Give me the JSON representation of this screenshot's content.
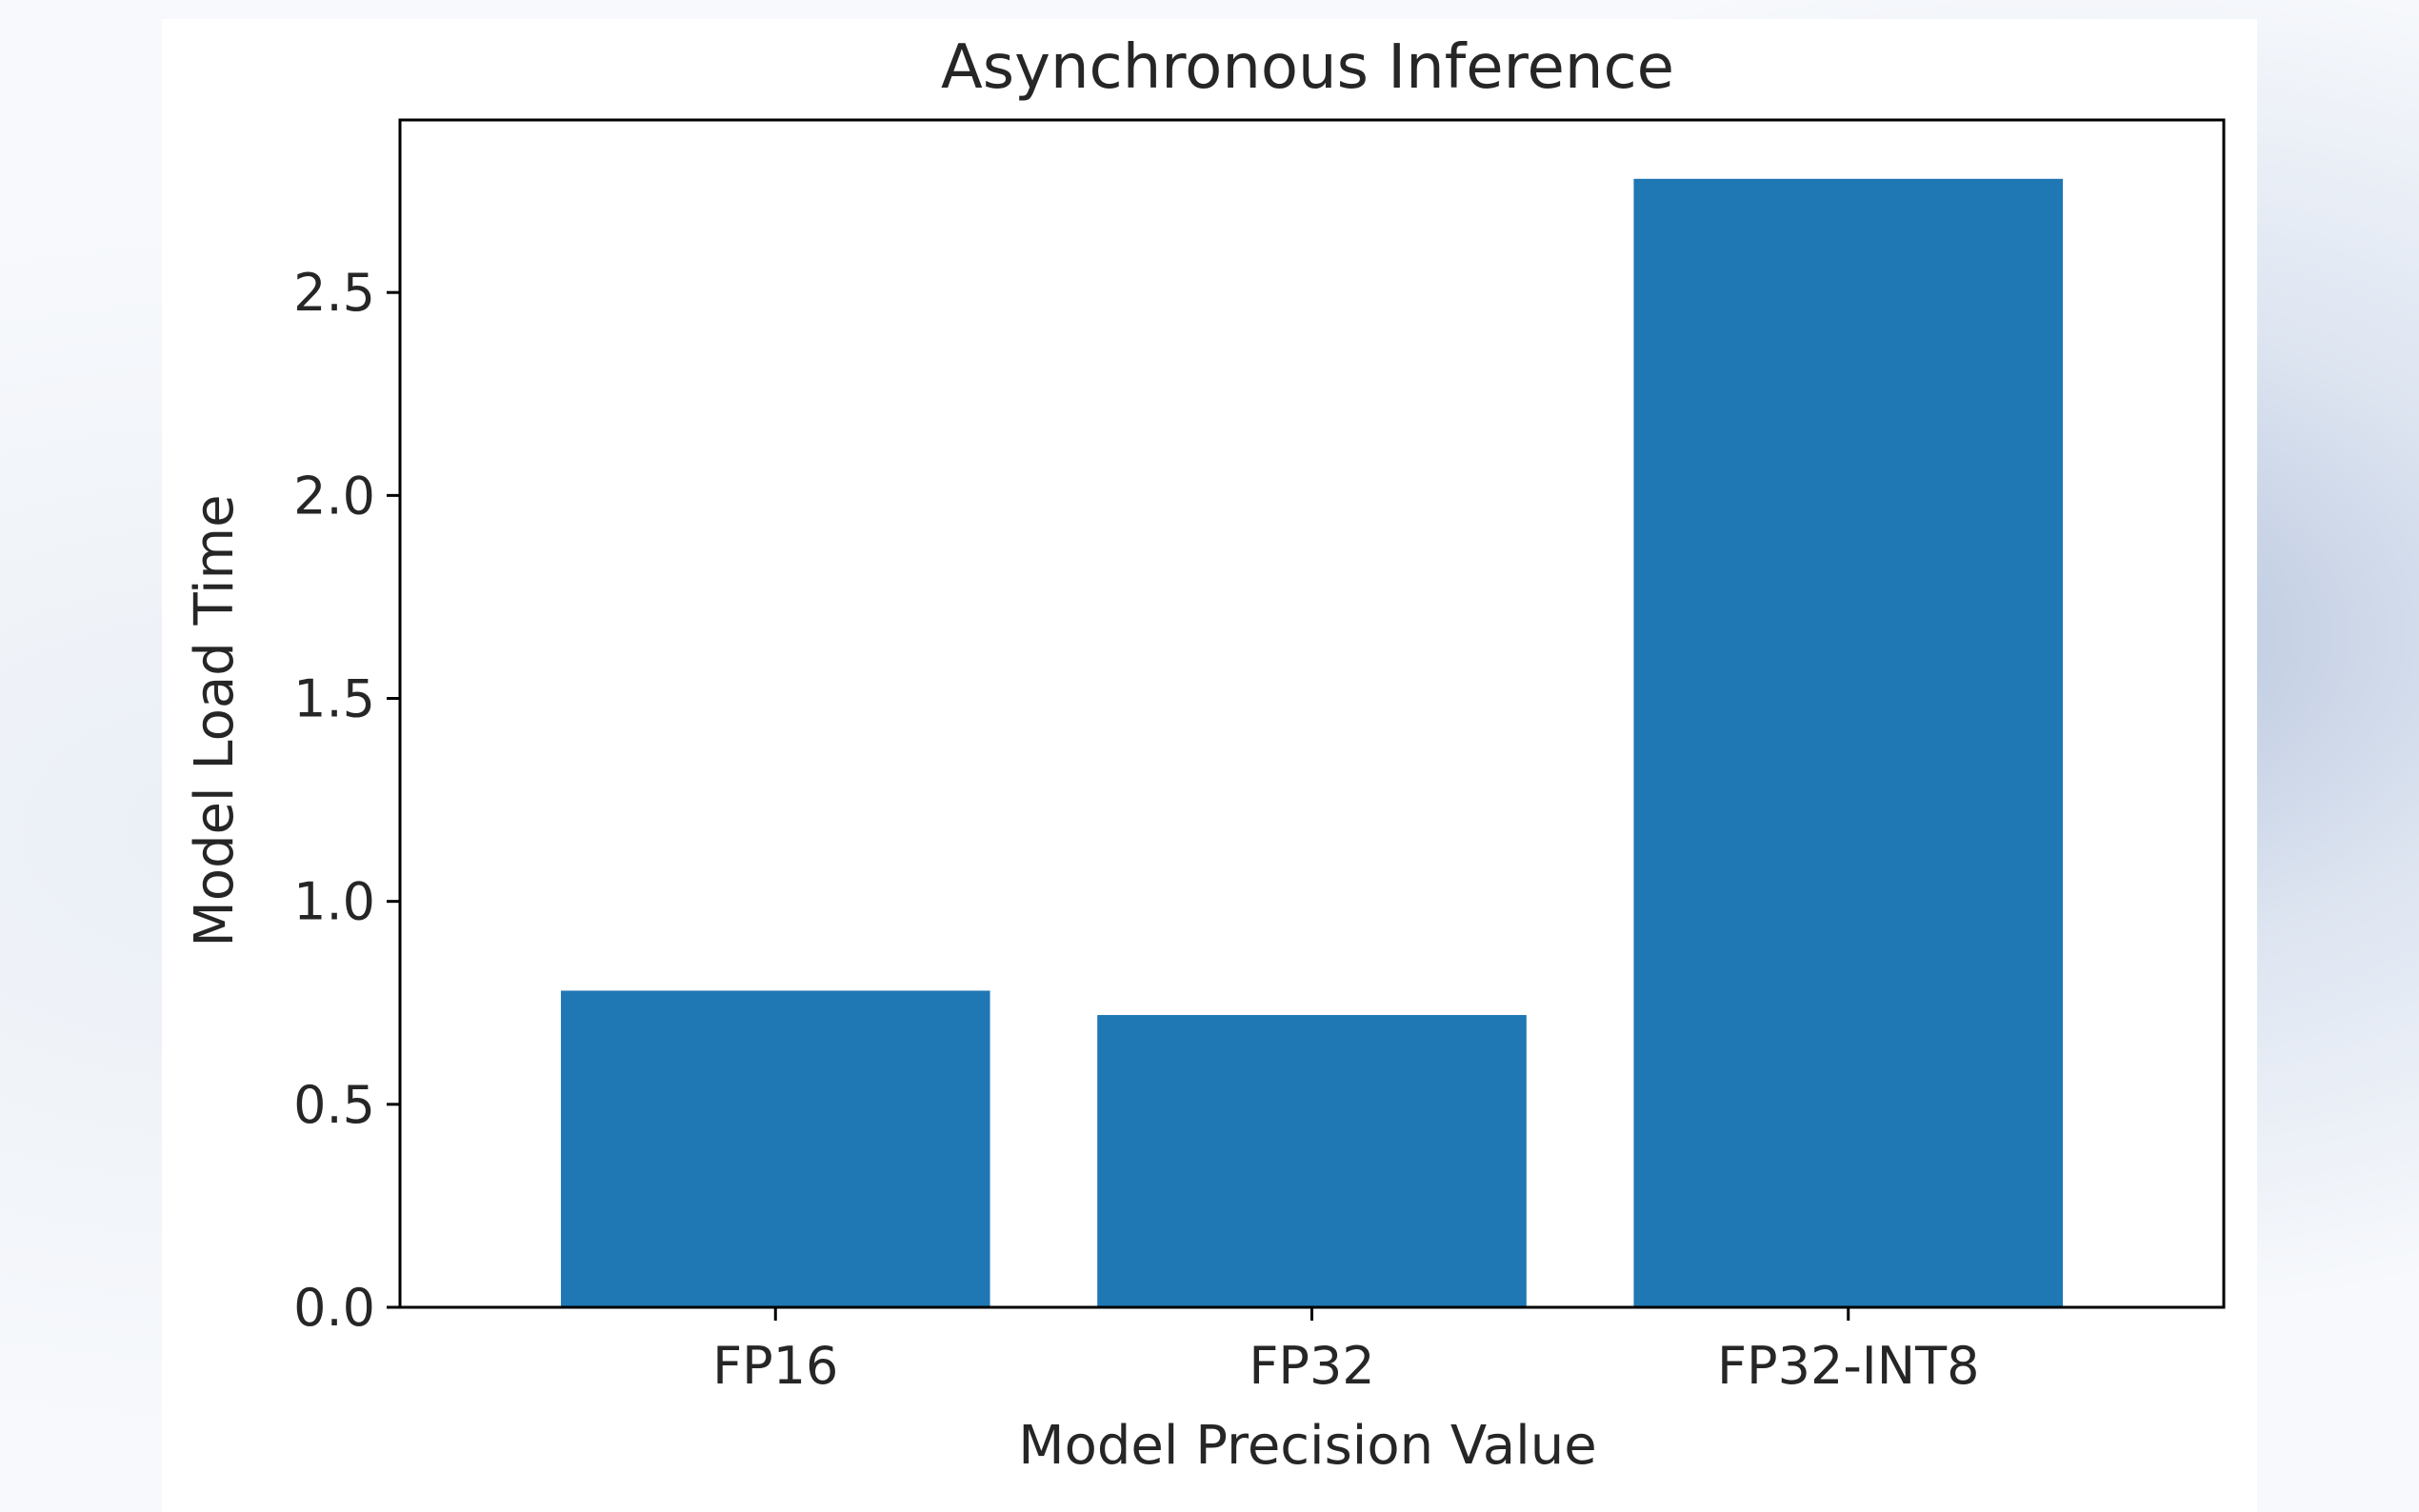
{
  "chart_data": {
    "type": "bar",
    "title": "Asynchronous Inference",
    "xlabel": "Model Precision Value",
    "ylabel": "Model Load Time",
    "categories": [
      "FP16",
      "FP32",
      "FP32-INT8"
    ],
    "values": [
      0.78,
      0.72,
      2.78
    ],
    "ylim": [
      0,
      2.925
    ],
    "yticks": [
      "0.0",
      "0.5",
      "1.0",
      "1.5",
      "2.0",
      "2.5"
    ],
    "bar_color": "#1f77b4",
    "grid": false,
    "legend": "none"
  }
}
